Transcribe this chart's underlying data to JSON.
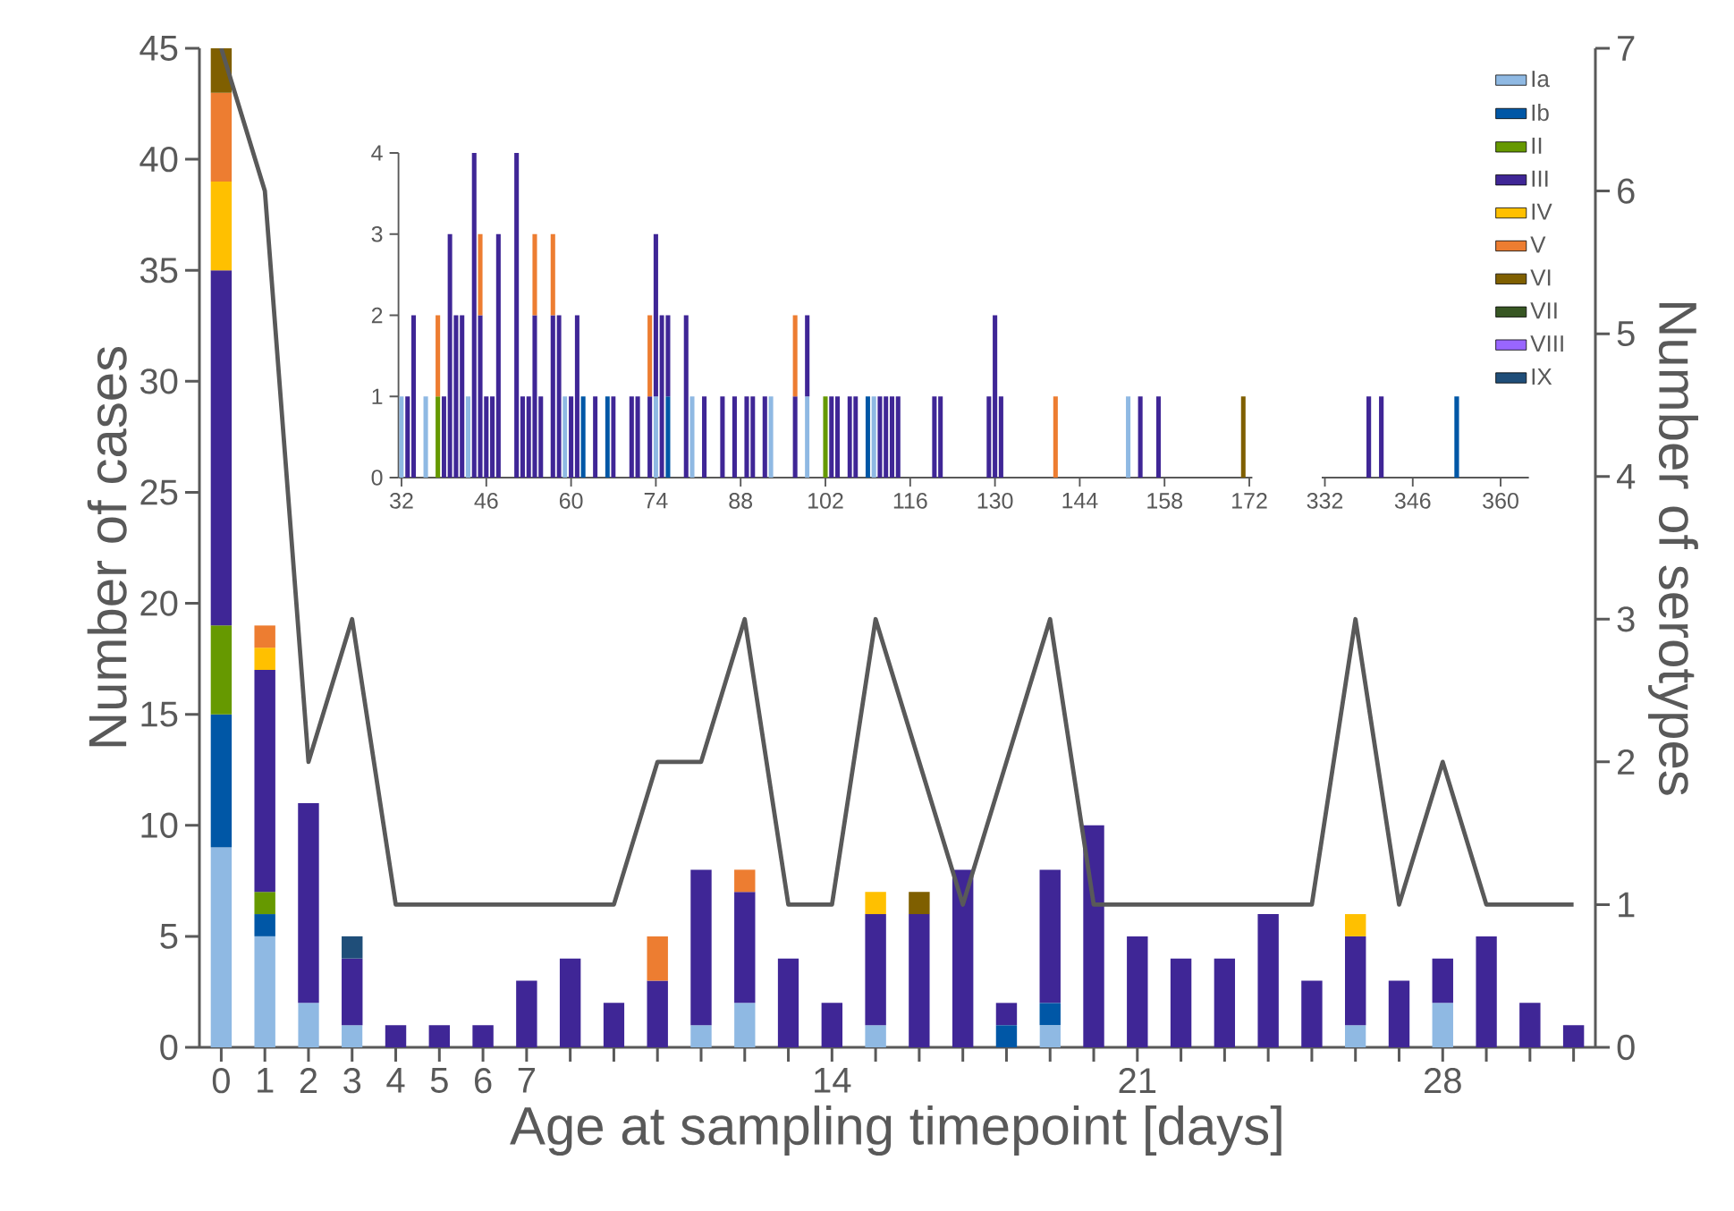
{
  "chart_data": [
    {
      "type": "bar",
      "stacked": true,
      "xlabel": "Age at sampling timepoint [days]",
      "ylabel": "Number of cases",
      "y2label": "Number of serotypes",
      "legend": "top right",
      "x": [
        0,
        1,
        2,
        3,
        4,
        5,
        6,
        7,
        8,
        9,
        10,
        11,
        12,
        13,
        14,
        15,
        16,
        17,
        18,
        19,
        20,
        21,
        22,
        23,
        24,
        25,
        26,
        27,
        28,
        29,
        30,
        31
      ],
      "xlim": [
        -0.5,
        31.5
      ],
      "xticks": [
        0,
        1,
        2,
        3,
        4,
        5,
        6,
        7,
        {
          "value": 8,
          "label": null
        },
        {
          "value": 9,
          "label": null
        },
        {
          "value": 10,
          "label": null
        },
        {
          "value": 11,
          "label": null
        },
        {
          "value": 12,
          "label": null
        },
        {
          "value": 13,
          "label": null
        },
        14,
        {
          "value": 15,
          "label": null
        },
        {
          "value": 16,
          "label": null
        },
        {
          "value": 17,
          "label": null
        },
        {
          "value": 18,
          "label": null
        },
        {
          "value": 19,
          "label": null
        },
        {
          "value": 20,
          "label": null
        },
        21,
        {
          "value": 22,
          "label": null
        },
        {
          "value": 23,
          "label": null
        },
        {
          "value": 24,
          "label": null
        },
        {
          "value": 25,
          "label": null
        },
        {
          "value": 26,
          "label": null
        },
        {
          "value": 27,
          "label": null
        },
        28,
        {
          "value": 29,
          "label": null
        },
        {
          "value": 30,
          "label": null
        },
        {
          "value": 31,
          "label": null
        }
      ],
      "ylim": [
        0,
        45
      ],
      "yticks": [
        0,
        5,
        10,
        15,
        20,
        25,
        30,
        35,
        40,
        45
      ],
      "y2lim": [
        0,
        7
      ],
      "y2ticks": [
        0,
        1,
        2,
        3,
        4,
        5,
        6,
        7
      ],
      "series": [
        {
          "name": "Ia",
          "color": "#8fb9e3",
          "values": [
            9,
            5,
            2,
            1,
            null,
            null,
            null,
            null,
            null,
            null,
            null,
            1,
            2,
            null,
            null,
            1,
            null,
            null,
            null,
            1,
            null,
            null,
            null,
            null,
            null,
            null,
            1,
            null,
            2,
            null,
            null,
            null
          ]
        },
        {
          "name": "Ib",
          "color": "#0057a6",
          "values": [
            6,
            1,
            null,
            null,
            null,
            null,
            null,
            null,
            null,
            null,
            null,
            null,
            null,
            null,
            null,
            null,
            null,
            null,
            1,
            1,
            null,
            null,
            null,
            null,
            null,
            null,
            null,
            null,
            null,
            null,
            null,
            null
          ]
        },
        {
          "name": "II",
          "color": "#669900",
          "values": [
            4,
            1,
            null,
            null,
            null,
            null,
            null,
            null,
            null,
            null,
            null,
            null,
            null,
            null,
            null,
            null,
            null,
            null,
            null,
            null,
            null,
            null,
            null,
            null,
            null,
            null,
            null,
            null,
            null,
            null,
            null,
            null
          ]
        },
        {
          "name": "III",
          "color": "#3f2696",
          "values": [
            16,
            10,
            9,
            3,
            1,
            1,
            1,
            3,
            4,
            2,
            3,
            7,
            5,
            4,
            2,
            5,
            6,
            8,
            1,
            6,
            10,
            5,
            4,
            4,
            6,
            3,
            4,
            3,
            2,
            5,
            2,
            1
          ]
        },
        {
          "name": "IV",
          "color": "#ffc000",
          "values": [
            4,
            1,
            null,
            null,
            null,
            null,
            null,
            null,
            null,
            null,
            null,
            null,
            null,
            null,
            null,
            1,
            null,
            null,
            null,
            null,
            null,
            null,
            null,
            null,
            null,
            null,
            1,
            null,
            null,
            null,
            null,
            null
          ]
        },
        {
          "name": "V",
          "color": "#ed7d31",
          "values": [
            4,
            1,
            null,
            null,
            null,
            null,
            null,
            null,
            null,
            null,
            2,
            null,
            1,
            null,
            null,
            null,
            null,
            null,
            null,
            null,
            null,
            null,
            null,
            null,
            null,
            null,
            null,
            null,
            null,
            null,
            null,
            null
          ]
        },
        {
          "name": "VI",
          "color": "#7f5f00",
          "values": [
            2,
            null,
            null,
            null,
            null,
            null,
            null,
            null,
            null,
            null,
            null,
            null,
            null,
            null,
            null,
            null,
            1,
            null,
            null,
            null,
            null,
            null,
            null,
            null,
            null,
            null,
            null,
            null,
            null,
            null,
            null,
            null
          ]
        },
        {
          "name": "VII",
          "color": "#375623",
          "values": [
            null,
            null,
            null,
            null,
            null,
            null,
            null,
            null,
            null,
            null,
            null,
            null,
            null,
            null,
            null,
            null,
            null,
            null,
            null,
            null,
            null,
            null,
            null,
            null,
            null,
            null,
            null,
            null,
            null,
            null,
            null,
            null
          ]
        },
        {
          "name": "VIII",
          "color": "#9966ff",
          "values": [
            null,
            null,
            null,
            null,
            null,
            null,
            null,
            null,
            null,
            null,
            null,
            null,
            null,
            null,
            null,
            null,
            null,
            null,
            null,
            null,
            null,
            null,
            null,
            null,
            null,
            null,
            null,
            null,
            null,
            null,
            null,
            null
          ]
        },
        {
          "name": "IX",
          "color": "#1f4e79",
          "values": [
            null,
            null,
            null,
            1,
            null,
            null,
            null,
            null,
            null,
            null,
            null,
            null,
            null,
            null,
            null,
            null,
            null,
            null,
            null,
            null,
            null,
            null,
            null,
            null,
            null,
            null,
            null,
            null,
            null,
            null,
            null,
            null
          ]
        },
        {
          "type": "line",
          "axis": "y2",
          "color": "#595959",
          "values": [
            7,
            6,
            2,
            3,
            1,
            1,
            1,
            1,
            1,
            1,
            2,
            2,
            3,
            1,
            1,
            3,
            2,
            1,
            2,
            3,
            1,
            1,
            1,
            1,
            1,
            1,
            3,
            1,
            2,
            1,
            1,
            1
          ]
        }
      ]
    },
    {
      "type": "bar",
      "stacked": true,
      "xlim": [
        31.5,
        172.5
      ],
      "xticks": [
        32,
        46,
        60,
        74,
        88,
        102,
        116,
        130,
        144,
        158,
        172
      ],
      "ylim": [
        0,
        4
      ],
      "yticks": [
        0,
        1,
        2,
        3,
        4
      ],
      "x": [
        32,
        33,
        34,
        36,
        38,
        39,
        40,
        41,
        42,
        43,
        44,
        45,
        46,
        47,
        48,
        51,
        52,
        53,
        54,
        55,
        57,
        58,
        59,
        60,
        61,
        62,
        64,
        66,
        67,
        70,
        71,
        73,
        74,
        75,
        76,
        79,
        80,
        82,
        85,
        87,
        89,
        90,
        92,
        93,
        97,
        99,
        102,
        103,
        104,
        106,
        107,
        109,
        110,
        111,
        112,
        113,
        114,
        120,
        121,
        129,
        130,
        131,
        140,
        152,
        154,
        157,
        171
      ],
      "series": [
        {
          "color": "#8fb9e3",
          "values": [
            1,
            null,
            null,
            1,
            null,
            null,
            null,
            null,
            null,
            1,
            null,
            null,
            null,
            null,
            null,
            null,
            null,
            null,
            null,
            null,
            null,
            null,
            1,
            null,
            null,
            null,
            null,
            null,
            null,
            null,
            null,
            null,
            1,
            null,
            null,
            null,
            1,
            null,
            null,
            null,
            null,
            null,
            null,
            1,
            null,
            1,
            null,
            null,
            null,
            null,
            null,
            null,
            1,
            null,
            null,
            null,
            null,
            null,
            null,
            null,
            null,
            null,
            null,
            1,
            null,
            null,
            null
          ]
        },
        {
          "color": "#0057a6",
          "values": [
            null,
            null,
            null,
            null,
            null,
            null,
            null,
            null,
            null,
            null,
            null,
            null,
            null,
            null,
            null,
            null,
            null,
            null,
            null,
            null,
            null,
            null,
            null,
            null,
            null,
            1,
            null,
            1,
            null,
            null,
            null,
            null,
            null,
            null,
            1,
            null,
            null,
            null,
            null,
            null,
            null,
            null,
            null,
            null,
            null,
            null,
            null,
            null,
            null,
            null,
            null,
            1,
            null,
            null,
            null,
            null,
            null,
            null,
            null,
            null,
            null,
            null,
            null,
            null,
            null,
            null,
            null
          ]
        },
        {
          "color": "#669900",
          "values": [
            null,
            null,
            null,
            null,
            1,
            null,
            null,
            null,
            null,
            null,
            null,
            null,
            null,
            null,
            null,
            null,
            null,
            null,
            null,
            null,
            null,
            null,
            null,
            null,
            null,
            null,
            null,
            null,
            null,
            null,
            null,
            null,
            null,
            null,
            null,
            null,
            null,
            null,
            null,
            null,
            null,
            null,
            null,
            null,
            null,
            null,
            1,
            null,
            null,
            null,
            null,
            null,
            null,
            null,
            null,
            null,
            null,
            null,
            null,
            null,
            null,
            null,
            null,
            null,
            null,
            null,
            null
          ]
        },
        {
          "color": "#3f2696",
          "values": [
            null,
            1,
            2,
            null,
            null,
            1,
            3,
            2,
            2,
            null,
            4,
            2,
            1,
            1,
            3,
            4,
            1,
            1,
            2,
            1,
            2,
            2,
            null,
            1,
            2,
            null,
            1,
            null,
            1,
            1,
            1,
            1,
            2,
            2,
            1,
            2,
            null,
            1,
            1,
            1,
            1,
            1,
            1,
            null,
            1,
            1,
            null,
            1,
            1,
            1,
            1,
            null,
            null,
            1,
            1,
            1,
            1,
            1,
            1,
            1,
            2,
            1,
            null,
            null,
            1,
            1,
            null
          ]
        },
        {
          "color": "#ed7d31",
          "values": [
            null,
            null,
            null,
            null,
            1,
            null,
            null,
            null,
            null,
            null,
            null,
            1,
            null,
            null,
            null,
            null,
            null,
            null,
            1,
            null,
            1,
            null,
            null,
            null,
            null,
            null,
            null,
            null,
            null,
            null,
            null,
            1,
            null,
            null,
            null,
            null,
            null,
            null,
            null,
            null,
            null,
            null,
            null,
            null,
            1,
            null,
            null,
            null,
            null,
            null,
            null,
            null,
            null,
            null,
            null,
            null,
            null,
            null,
            null,
            null,
            null,
            null,
            1,
            null,
            null,
            null,
            null
          ]
        },
        {
          "color": "#7f5f00",
          "values": [
            null,
            null,
            null,
            null,
            null,
            null,
            null,
            null,
            null,
            null,
            null,
            null,
            null,
            null,
            null,
            null,
            null,
            null,
            null,
            null,
            null,
            null,
            null,
            null,
            null,
            null,
            null,
            null,
            null,
            null,
            null,
            null,
            null,
            null,
            null,
            null,
            null,
            null,
            null,
            null,
            null,
            null,
            null,
            null,
            null,
            null,
            null,
            null,
            null,
            null,
            null,
            null,
            null,
            null,
            null,
            null,
            null,
            null,
            null,
            null,
            null,
            null,
            null,
            null,
            null,
            null,
            1
          ]
        }
      ]
    },
    {
      "type": "bar",
      "stacked": true,
      "xlim": [
        331.5,
        364.5
      ],
      "xticks": [
        332,
        346,
        360
      ],
      "ylim": [
        0,
        4
      ],
      "yticks": [
        0,
        1,
        2,
        3,
        4
      ],
      "tick_labels": "x",
      "x": [
        339,
        341,
        353
      ],
      "series": [
        {
          "color": "#3f2696",
          "values": [
            1,
            1,
            null
          ]
        },
        {
          "color": "#0057a6",
          "values": [
            null,
            null,
            1
          ]
        }
      ]
    }
  ]
}
